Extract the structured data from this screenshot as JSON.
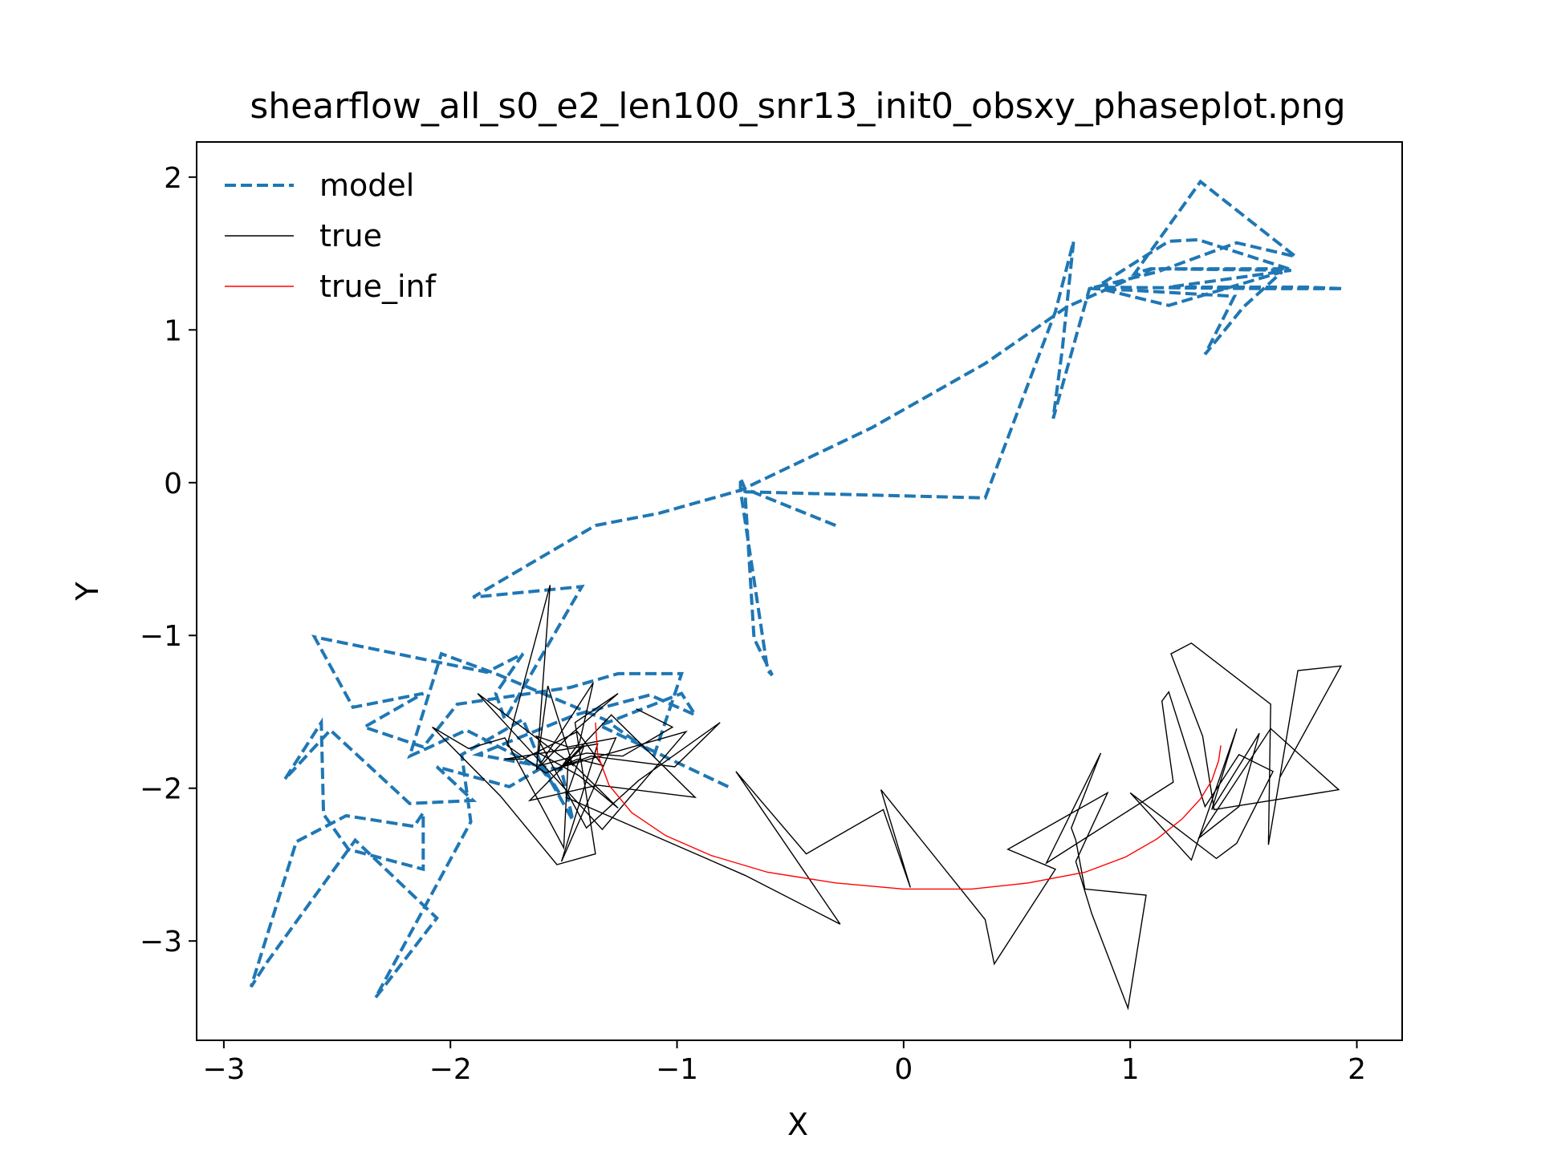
{
  "chart_data": {
    "type": "line",
    "title": "shearflow_all_s0_e2_len100_snr13_init0_obsxy_phaseplot.png",
    "xlabel": "X",
    "ylabel": "Y",
    "xlim": [
      -3.12,
      2.2
    ],
    "ylim": [
      -3.65,
      2.23
    ],
    "xticks": [
      -3,
      -2,
      -1,
      0,
      1,
      2
    ],
    "xtick_labels": [
      "−3",
      "−2",
      "−1",
      "0",
      "1",
      "2"
    ],
    "yticks": [
      -3,
      -2,
      -1,
      0,
      1,
      2
    ],
    "ytick_labels": [
      "−3",
      "−2",
      "−1",
      "0",
      "1",
      "2"
    ],
    "grid": false,
    "legend_position": "upper-left",
    "series": [
      {
        "name": "model",
        "color": "#1f77b4",
        "style": "dashed",
        "x": [
          -0.3,
          -0.7,
          -0.72,
          -0.72,
          -0.6,
          -0.58,
          -0.66,
          -0.7,
          0.36,
          0.67,
          0.75,
          0.7,
          0.66,
          0.82,
          1.12,
          1.47,
          1.73,
          1.31,
          1.02,
          1.09,
          1.71,
          1.17,
          1.78,
          1.94,
          1.62,
          0.84,
          1.17,
          1.67,
          1.5,
          1.33,
          1.46,
          1.0,
          0.84,
          1.17,
          1.3,
          1.7,
          1.1,
          0.72,
          0.36,
          -0.14,
          -0.72,
          -1.08,
          -1.36,
          -1.9,
          -1.42,
          -1.76,
          -1.8,
          -1.68,
          -1.84,
          -2.6,
          -2.43,
          -2.12,
          -2.38,
          -2.12,
          -1.97,
          -1.47,
          -1.26,
          -0.98,
          -1.1,
          -1.32,
          -1.8,
          -2.04,
          -2.18,
          -2.09,
          -1.93,
          -1.6,
          -1.52,
          -1.59,
          -1.74,
          -2.06,
          -1.9,
          -2.18,
          -2.53,
          -2.73,
          -2.57,
          -2.56,
          -2.45,
          -2.12,
          -2.12,
          -2.16,
          -2.46,
          -2.68,
          -2.88,
          -2.81,
          -2.42,
          -2.06,
          -2.33,
          -1.91,
          -1.95,
          -1.68,
          -1.6,
          -1.46,
          -1.51,
          -1.88,
          -1.45,
          -1.12,
          -0.92,
          -0.98,
          -1.34,
          -0.96,
          -0.76
        ],
        "y": [
          -0.28,
          -0.04,
          0.03,
          -0.05,
          -1.23,
          -1.26,
          -1.02,
          -0.06,
          -0.1,
          1.12,
          1.58,
          0.87,
          0.42,
          1.27,
          1.38,
          1.57,
          1.48,
          1.97,
          1.37,
          1.4,
          1.39,
          1.28,
          1.28,
          1.27,
          1.27,
          1.28,
          1.16,
          1.38,
          1.15,
          0.84,
          1.22,
          1.26,
          1.27,
          1.58,
          1.59,
          1.4,
          1.4,
          1.15,
          0.78,
          0.36,
          -0.05,
          -0.2,
          -0.28,
          -0.75,
          -0.68,
          -1.55,
          -1.38,
          -1.12,
          -1.24,
          -1.01,
          -1.47,
          -1.38,
          -1.6,
          -1.73,
          -1.45,
          -1.34,
          -1.25,
          -1.25,
          -1.78,
          -1.55,
          -1.25,
          -1.12,
          -1.79,
          -1.73,
          -1.62,
          -1.87,
          -2.03,
          -1.86,
          -1.99,
          -1.86,
          -2.08,
          -2.1,
          -1.62,
          -1.94,
          -1.57,
          -2.17,
          -2.4,
          -2.53,
          -2.16,
          -2.25,
          -2.18,
          -2.35,
          -3.3,
          -3.14,
          -2.34,
          -2.85,
          -3.37,
          -2.22,
          -1.78,
          -1.55,
          -1.84,
          -2.21,
          -1.88,
          -1.78,
          -1.52,
          -1.39,
          -1.52,
          -1.38,
          -1.59,
          -1.86,
          -2.0
        ]
      },
      {
        "name": "true",
        "color": "#000000",
        "style": "solid",
        "x": [
          -1.18,
          -1.02,
          -1.24,
          -1.4,
          -1.6,
          -1.48,
          -1.26,
          -1.45,
          -1.36,
          -1.53,
          -1.78,
          -2.08,
          -1.92,
          -1.76,
          -1.5,
          -1.48,
          -1.26,
          -1.43,
          -1.61,
          -1.57,
          -1.46,
          -1.88,
          -1.33,
          -0.96,
          -1.53,
          -1.44,
          -1.33,
          -1.44,
          -1.68,
          -1.76,
          -1.35,
          -1.51,
          -1.27,
          -1.48,
          -1.62,
          -1.4,
          -1.17,
          -0.81,
          -1.01,
          -1.38,
          -1.58,
          -1.75,
          -1.56,
          -1.62,
          -1.37,
          -1.43,
          -1.52,
          -1.29,
          -0.92,
          -1.35,
          -1.65,
          -1.41,
          -1.49,
          -0.7,
          -0.28,
          -0.74,
          -0.43,
          -0.09,
          0.03,
          -0.1,
          0.36,
          0.4,
          0.67,
          0.46,
          0.9,
          0.76,
          0.83,
          0.99,
          1.07,
          0.8,
          0.76,
          0.74,
          0.87,
          0.63,
          1.19,
          1.14,
          1.17,
          1.33,
          1.48,
          1.63,
          1.47,
          1.38,
          1.0,
          1.27,
          1.47,
          1.36,
          1.57,
          1.48,
          1.3,
          1.62,
          1.92,
          1.37,
          1.32,
          1.18,
          1.27,
          1.62,
          1.61,
          1.74,
          1.93,
          1.66
        ],
        "y": [
          -1.48,
          -1.6,
          -1.79,
          -1.77,
          -1.85,
          -1.66,
          -1.38,
          -1.57,
          -2.43,
          -2.5,
          -2.05,
          -1.6,
          -1.74,
          -1.67,
          -2.39,
          -1.81,
          -2.13,
          -1.92,
          -1.77,
          -1.33,
          -1.85,
          -1.38,
          -2.27,
          -1.63,
          -1.87,
          -1.81,
          -1.85,
          -1.63,
          -1.81,
          -1.81,
          -1.71,
          -2.48,
          -1.67,
          -1.73,
          -1.66,
          -2.26,
          -1.95,
          -1.57,
          -1.86,
          -1.79,
          -1.9,
          -1.72,
          -0.67,
          -1.88,
          -1.31,
          -1.7,
          -1.88,
          -1.52,
          -2.06,
          -1.98,
          -2.08,
          -1.72,
          -2.06,
          -2.57,
          -2.89,
          -1.89,
          -2.43,
          -2.14,
          -2.65,
          -2.01,
          -2.86,
          -3.15,
          -2.53,
          -2.4,
          -2.03,
          -2.48,
          -2.82,
          -3.44,
          -2.7,
          -2.66,
          -2.34,
          -2.26,
          -1.77,
          -2.49,
          -1.96,
          -1.43,
          -1.37,
          -2.12,
          -1.78,
          -1.89,
          -2.36,
          -2.46,
          -2.03,
          -2.47,
          -1.61,
          -2.14,
          -1.64,
          -2.12,
          -2.33,
          -1.61,
          -2.01,
          -2.14,
          -1.66,
          -1.12,
          -1.05,
          -1.45,
          -2.37,
          -1.23,
          -1.2,
          -1.93
        ]
      },
      {
        "name": "true_inf",
        "color": "#ff0000",
        "style": "solid",
        "x": [
          -1.36,
          -1.35,
          -1.3,
          -1.2,
          -1.05,
          -0.85,
          -0.6,
          -0.3,
          0.0,
          0.3,
          0.55,
          0.8,
          0.98,
          1.12,
          1.23,
          1.31,
          1.36,
          1.39,
          1.4
        ],
        "y": [
          -1.57,
          -1.78,
          -1.98,
          -2.16,
          -2.31,
          -2.44,
          -2.55,
          -2.62,
          -2.66,
          -2.66,
          -2.62,
          -2.55,
          -2.45,
          -2.33,
          -2.2,
          -2.07,
          -1.95,
          -1.82,
          -1.72
        ]
      }
    ]
  }
}
